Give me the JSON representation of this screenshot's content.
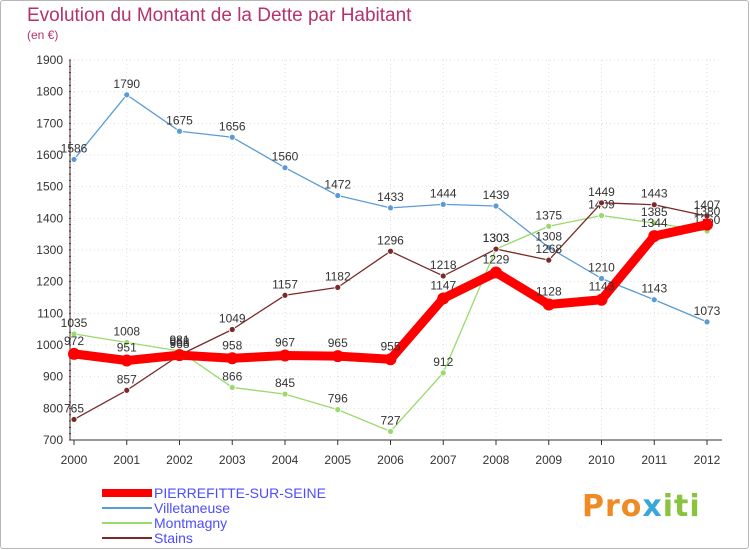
{
  "chart_data": {
    "type": "line",
    "title": "Evolution du Montant de la Dette par Habitant",
    "subtitle": "(en €)",
    "categories": [
      "2000",
      "2001",
      "2002",
      "2003",
      "2004",
      "2005",
      "2006",
      "2007",
      "2008",
      "2009",
      "2010",
      "2011",
      "2012"
    ],
    "ylim": [
      700,
      1900
    ],
    "yticks": [
      700,
      800,
      900,
      1000,
      1100,
      1200,
      1300,
      1400,
      1500,
      1600,
      1700,
      1800,
      1900
    ],
    "grid": "dotted",
    "legend_position": "bottom-left",
    "series": [
      {
        "name": "Villetaneuse",
        "color": "#5b9bd5",
        "values": [
          1586,
          1790,
          1675,
          1656,
          1560,
          1472,
          1433,
          1444,
          1439,
          1308,
          1210,
          1143,
          1073
        ]
      },
      {
        "name": "Montmagny",
        "color": "#9ad96b",
        "values": [
          1035,
          1008,
          981,
          866,
          845,
          796,
          727,
          912,
          1303,
          1375,
          1409,
          1385,
          1360
        ]
      },
      {
        "name": "Stains",
        "color": "#7a2a2a",
        "values": [
          765,
          857,
          968,
          1049,
          1157,
          1182,
          1296,
          1218,
          1303,
          1268,
          1449,
          1443,
          1407
        ]
      },
      {
        "name": "PIERREFITTE-SUR-SEINE",
        "color": "#ff0000",
        "values": [
          972,
          951,
          968,
          958,
          967,
          965,
          955,
          1147,
          1229,
          1128,
          1143,
          1344,
          1380
        ]
      }
    ],
    "legend_order": [
      "PIERREFITTE-SUR-SEINE",
      "Villetaneuse",
      "Montmagny",
      "Stains"
    ],
    "label_color": "#333333",
    "axis_color": "#333333",
    "grid_color": "#dddddd",
    "title_color": "#b5316f",
    "legend_text_color": "#4c4cff"
  },
  "brand": {
    "part1": "Pro",
    "part2": "x",
    "part3": "iti"
  }
}
